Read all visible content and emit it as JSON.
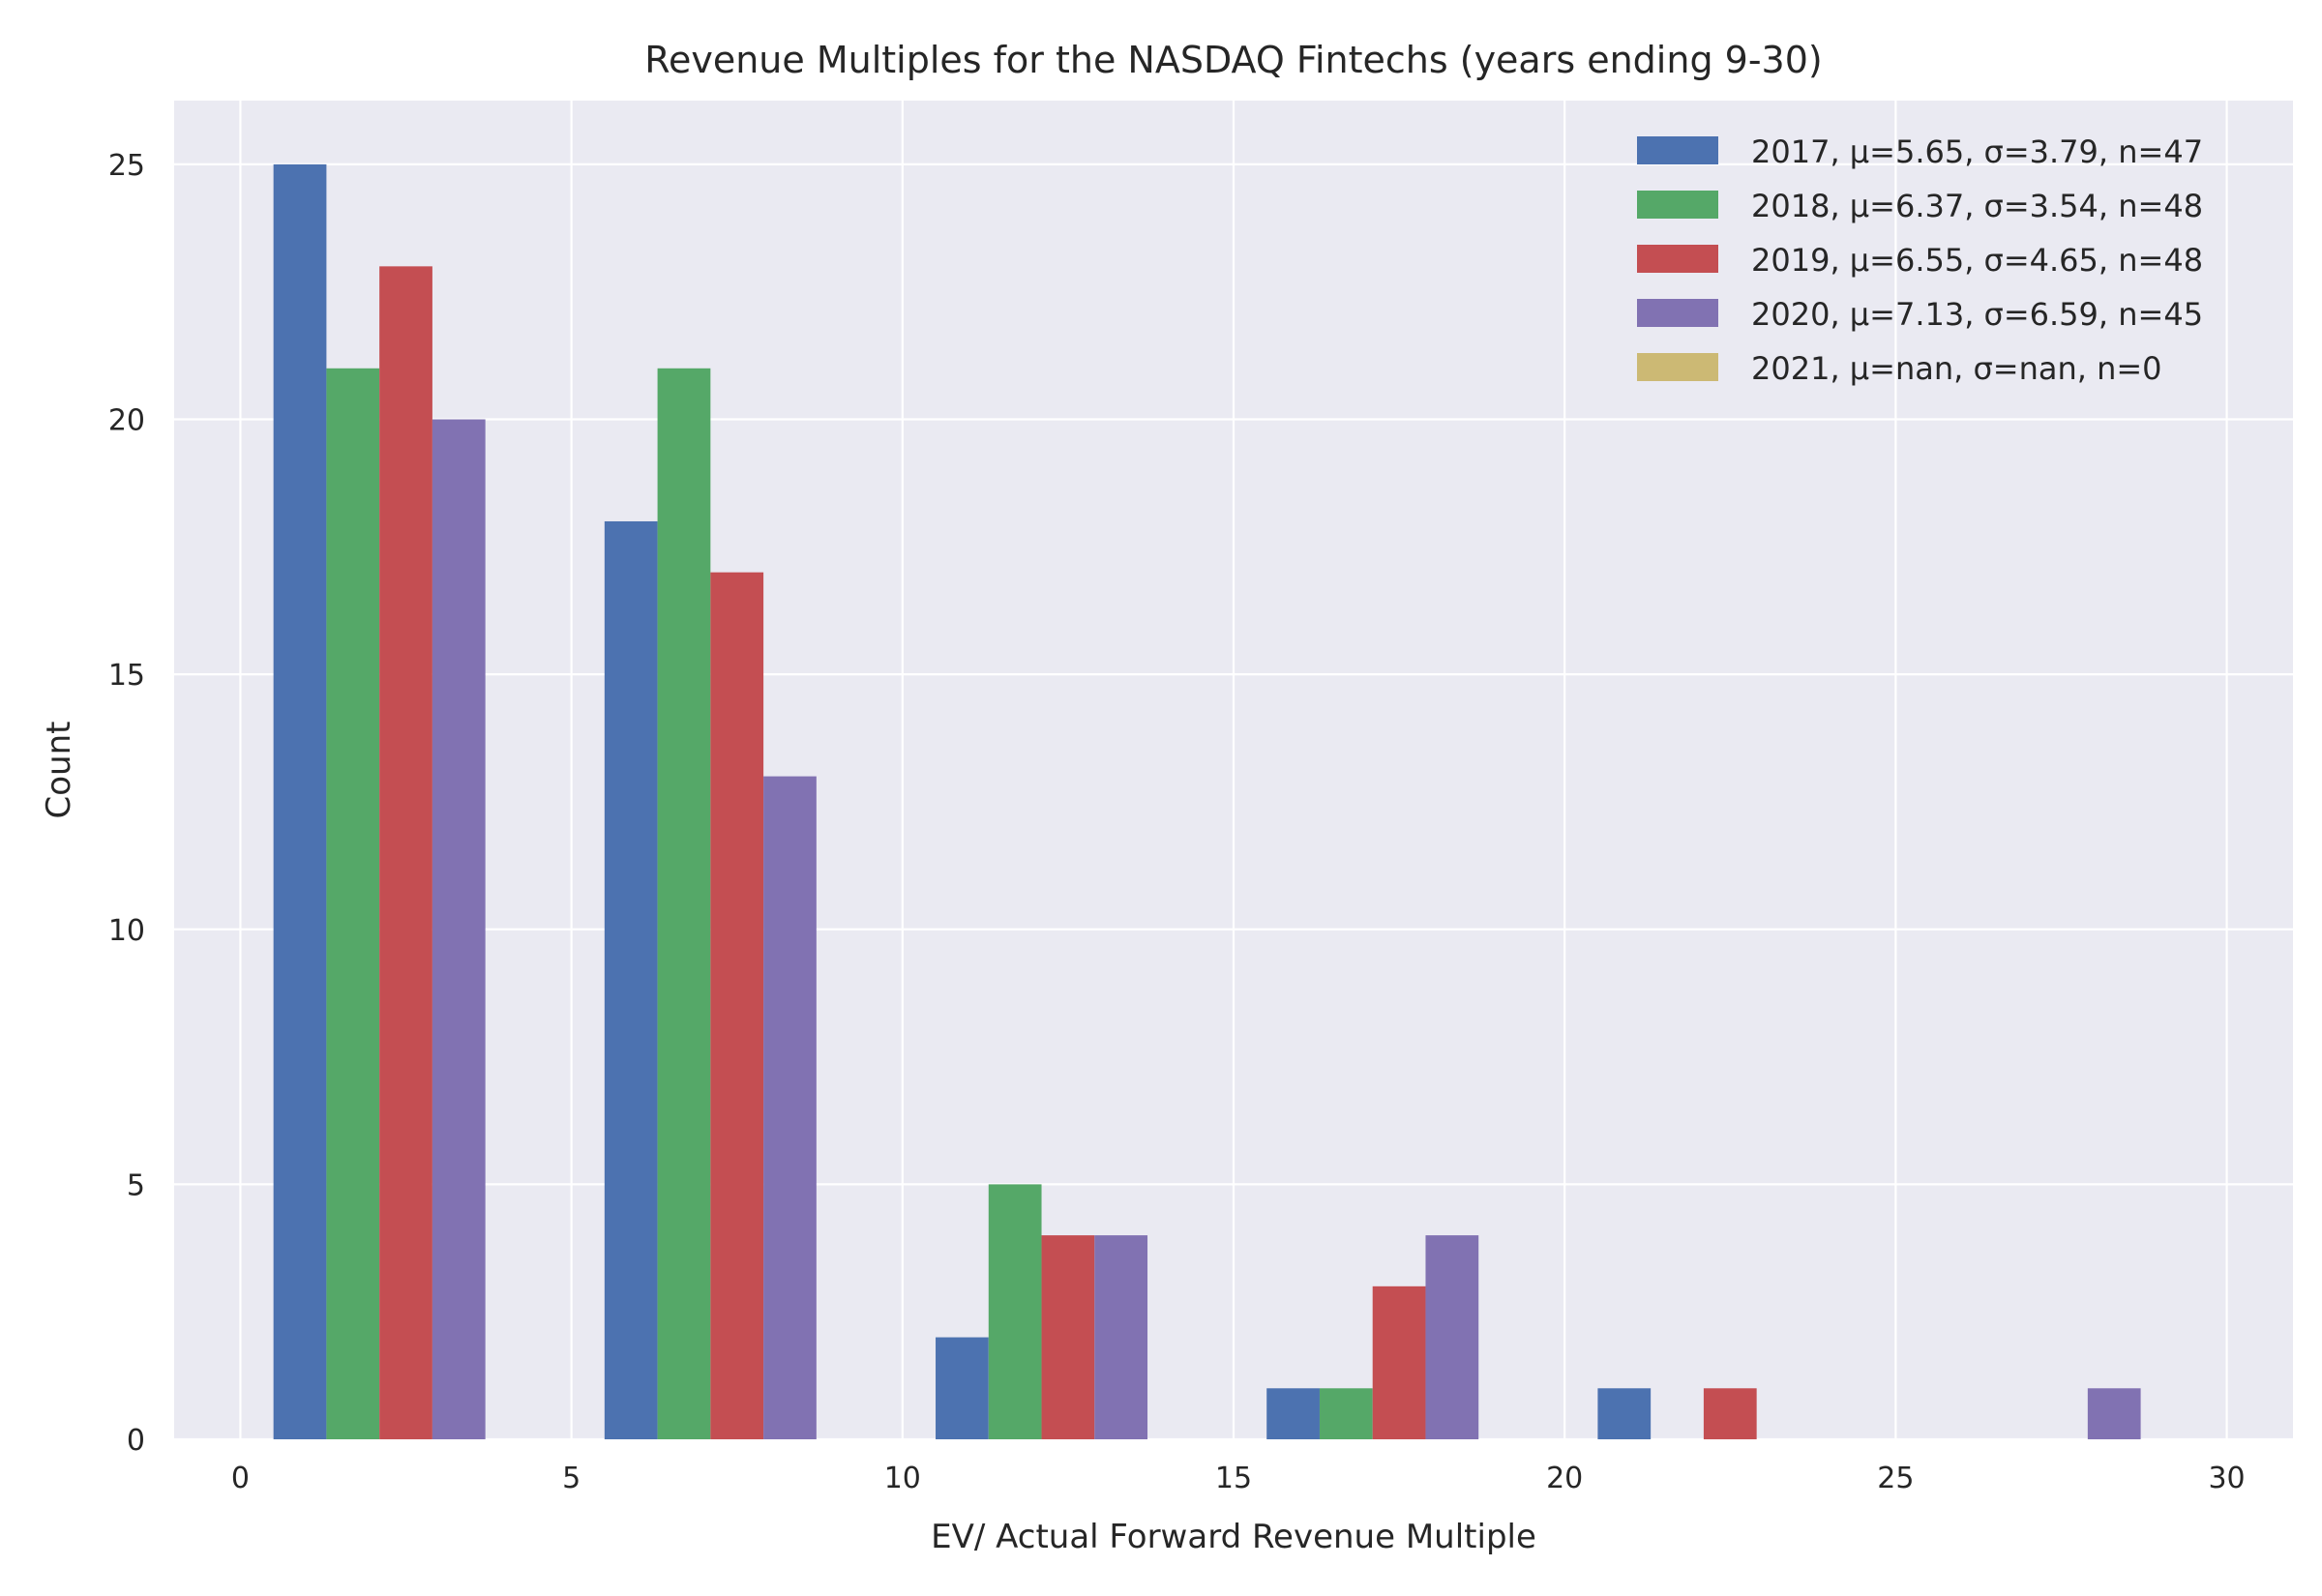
{
  "chart_data": {
    "type": "bar",
    "title": "Revenue Multiples for the NASDAQ Fintechs (years ending 9-30)",
    "xlabel": "EV/ Actual Forward Revenue Multiple",
    "ylabel": "Count",
    "xlim": [
      -1,
      31
    ],
    "ylim": [
      0,
      26.25
    ],
    "xticks": [
      0,
      5,
      10,
      15,
      20,
      25,
      30
    ],
    "yticks": [
      0,
      5,
      10,
      15,
      20,
      25
    ],
    "bin_width": 5,
    "bins": [
      [
        0.5,
        3.7
      ],
      [
        5.5,
        8.7
      ],
      [
        10.5,
        13.7
      ],
      [
        15.5,
        18.7
      ],
      [
        20.5,
        23.7
      ],
      [
        25.5,
        28.7
      ]
    ],
    "grid": true,
    "legend_position": "top-right",
    "colors": {
      "background": "#eaeaf2",
      "grid": "#ffffff",
      "text": "#262626"
    },
    "series": [
      {
        "name": "2017, μ=5.65, σ=3.79, n=47",
        "color": "#4c72b0",
        "values": [
          25,
          18,
          2,
          1,
          1,
          0
        ]
      },
      {
        "name": "2018, μ=6.37, σ=3.54, n=48",
        "color": "#55a868",
        "values": [
          21,
          21,
          5,
          1,
          0,
          0
        ]
      },
      {
        "name": "2019, μ=6.55, σ=4.65, n=48",
        "color": "#c44e52",
        "values": [
          23,
          17,
          4,
          3,
          1,
          0
        ]
      },
      {
        "name": "2020, μ=7.13, σ=6.59, n=45",
        "color": "#8172b2",
        "values": [
          20,
          13,
          4,
          4,
          0,
          1
        ]
      },
      {
        "name": "2021, μ=nan, σ=nan, n=0",
        "color": "#ccb974",
        "values": [
          0,
          0,
          0,
          0,
          0,
          0
        ]
      }
    ]
  }
}
